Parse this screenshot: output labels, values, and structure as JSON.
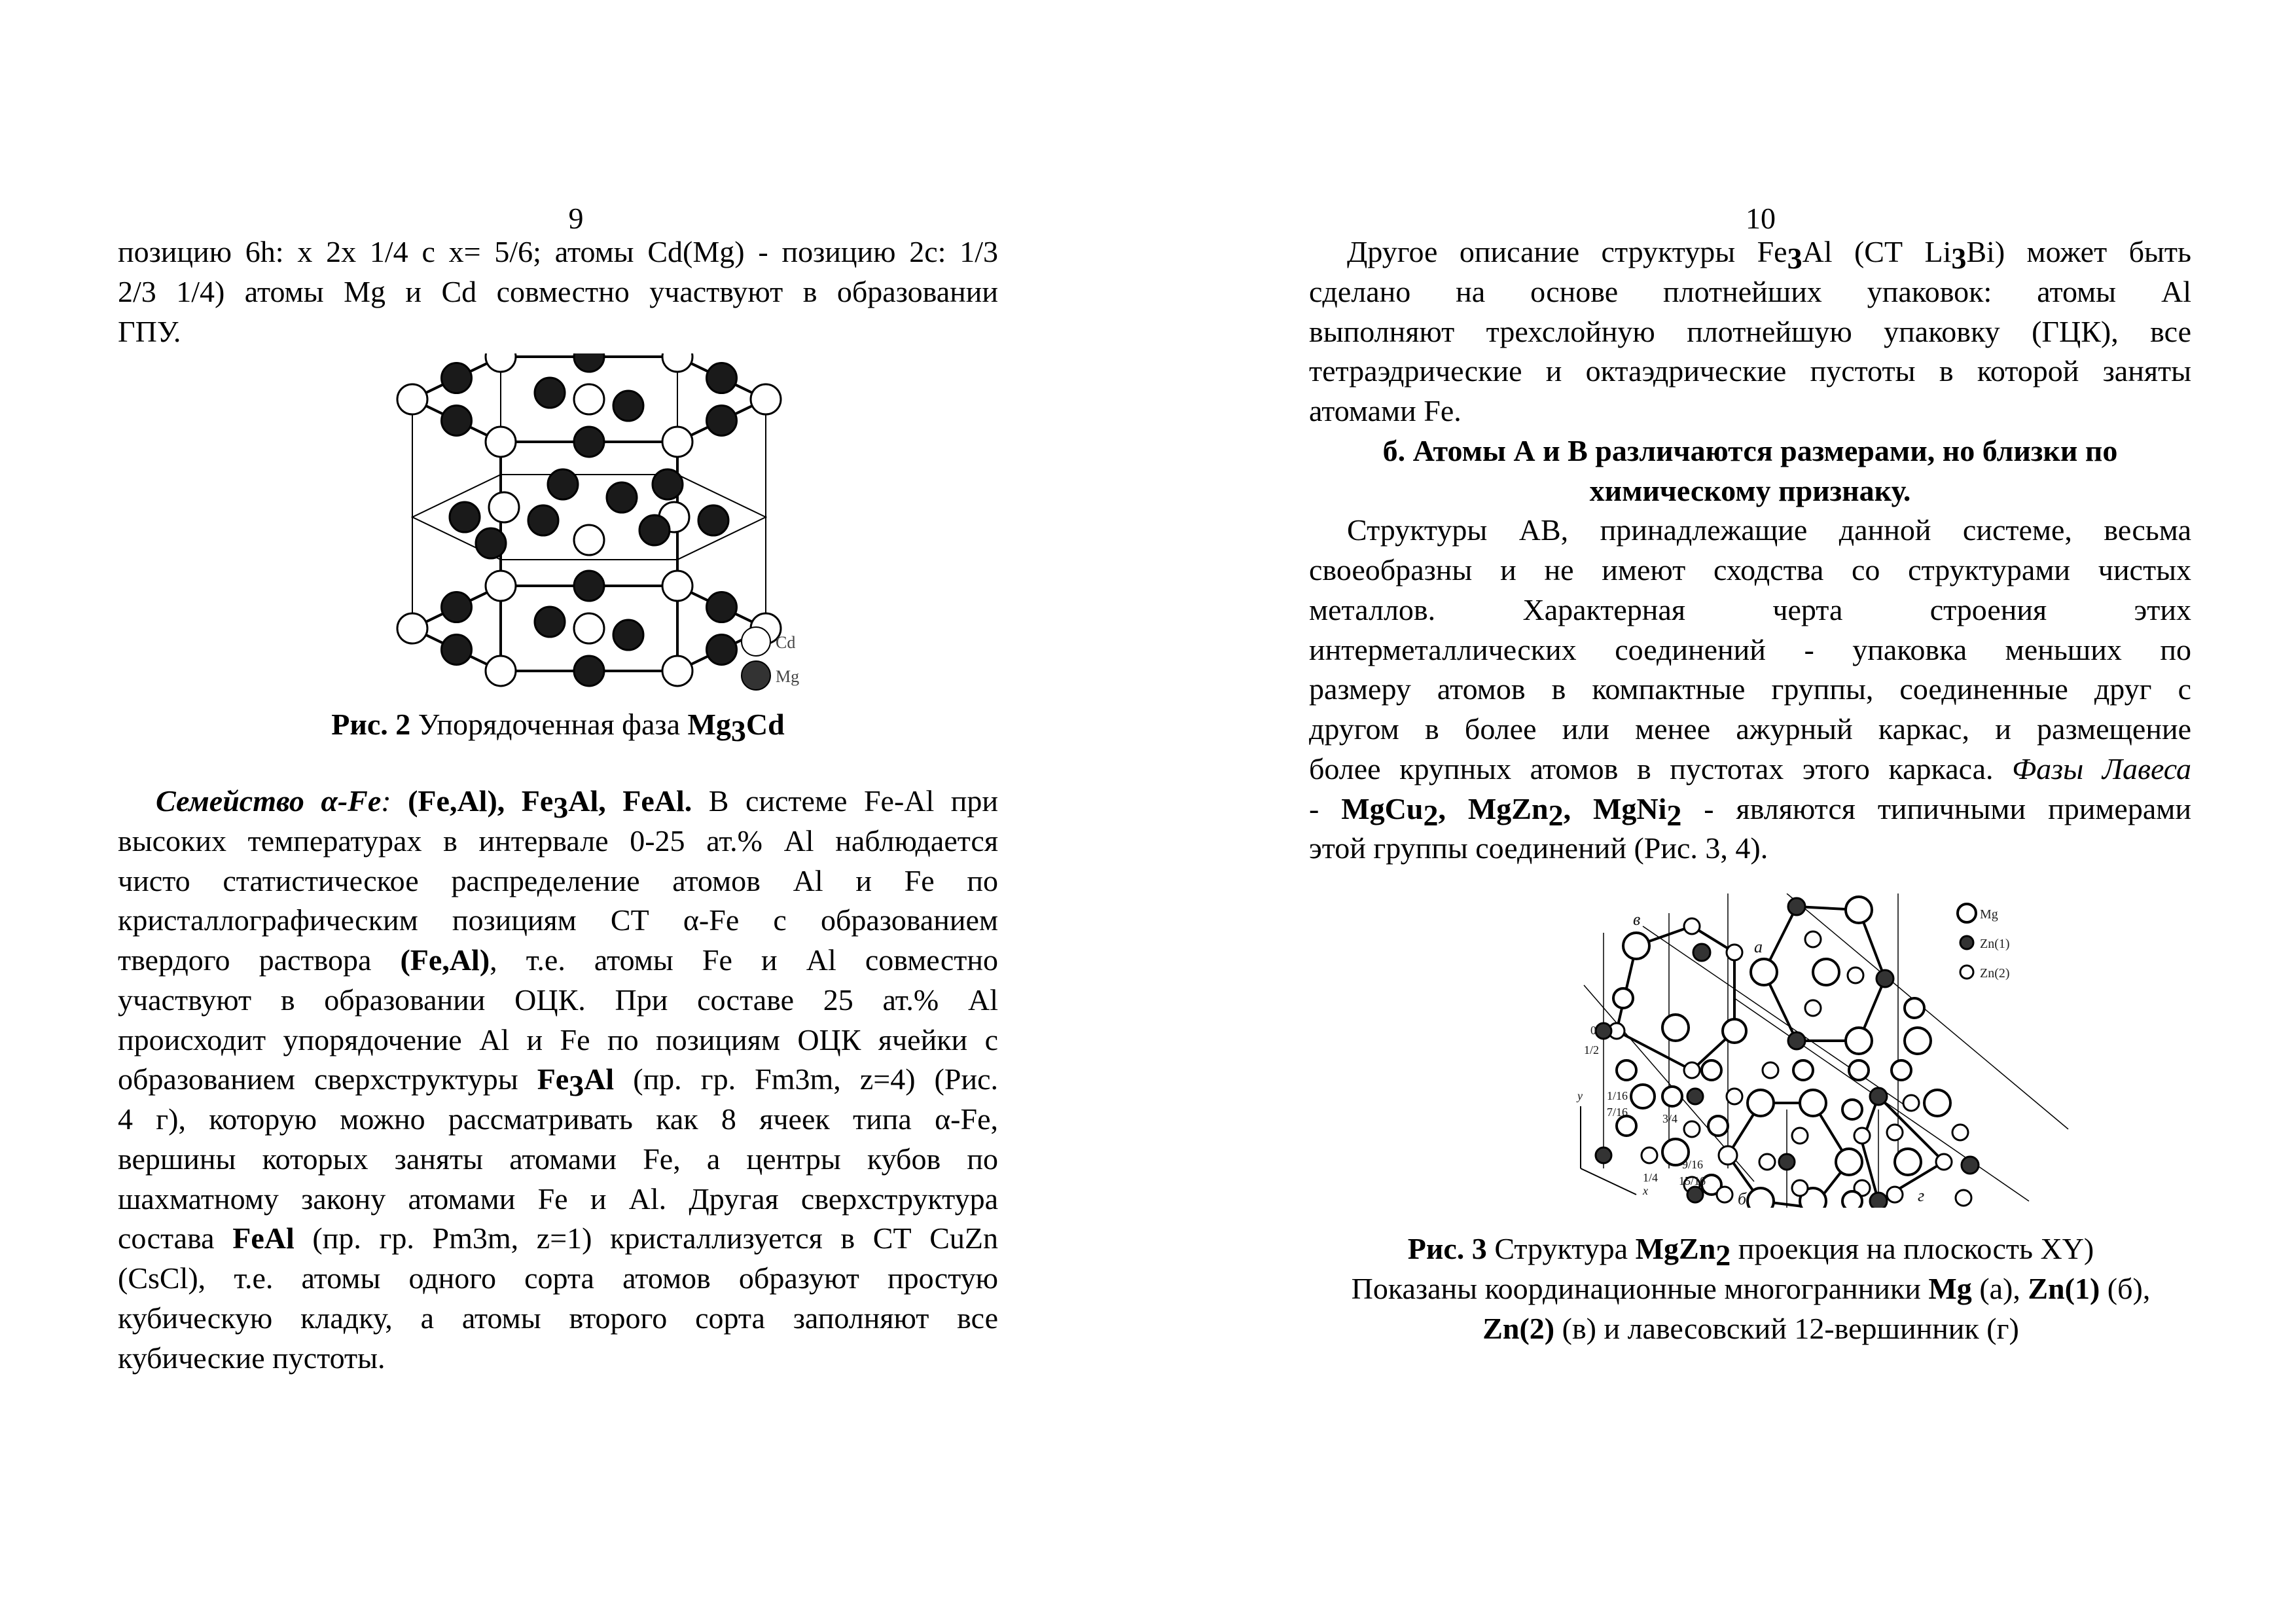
{
  "left": {
    "page_number": "9",
    "lines_top": [
      {
        "cls": "j",
        "runs": [
          {
            "t": "позицию 6h: x 2x 1/4 c x= 5/6; атомы Cd(Mg) - позицию 2c: 1/3"
          }
        ]
      },
      {
        "cls": "j",
        "runs": [
          {
            "t": "2/3 1/4) атомы Mg и Cd совместно участвуют в образовании"
          }
        ]
      },
      {
        "cls": "",
        "runs": [
          {
            "t": "ГПУ."
          }
        ]
      }
    ],
    "figure": {
      "legend": [
        "Cd",
        "Mg"
      ]
    },
    "caption": [
      {
        "cls": "c",
        "runs": [
          {
            "t": "Рис. 2",
            "s": "b"
          },
          {
            "t": " Упорядоченная фаза "
          },
          {
            "t": "Mg",
            "s": "b"
          },
          {
            "t": "3",
            "s": "sub"
          },
          {
            "t": "Cd",
            "s": "b"
          }
        ]
      }
    ],
    "lines_body": [
      {
        "cls": "j ind",
        "runs": [
          {
            "t": "Семейство α-Fe",
            "s": "b i"
          },
          {
            "t": ": ",
            "s": "i"
          },
          {
            "t": "(Fe,Al), Fe",
            "s": "b"
          },
          {
            "t": "3",
            "s": "sub"
          },
          {
            "t": "Al, FeAl.",
            "s": "b"
          },
          {
            "t": " В системе Fe-Al при"
          }
        ]
      },
      {
        "cls": "j",
        "runs": [
          {
            "t": "высоких температурах в интервале 0-25 ат.% Al наблюдается"
          }
        ]
      },
      {
        "cls": "j",
        "runs": [
          {
            "t": "чисто статистическое распределение атомов Al и Fe по"
          }
        ]
      },
      {
        "cls": "j",
        "runs": [
          {
            "t": "кристаллографическим позициям СТ α-Fe с образованием"
          }
        ]
      },
      {
        "cls": "j",
        "runs": [
          {
            "t": "твердого раствора "
          },
          {
            "t": "(Fe,Al)",
            "s": "b"
          },
          {
            "t": ", т.е. атомы  Fe и Al совместно"
          }
        ]
      },
      {
        "cls": "j",
        "runs": [
          {
            "t": "участвуют в образовании ОЦК. При составе 25 ат.% Al"
          }
        ]
      },
      {
        "cls": "j",
        "runs": [
          {
            "t": "происходит упорядочение Al и Fe по позициям ОЦК ячейки с"
          }
        ]
      },
      {
        "cls": "j",
        "runs": [
          {
            "t": "образованием сверхструктуры "
          },
          {
            "t": "Fe",
            "s": "b"
          },
          {
            "t": "3",
            "s": "sub"
          },
          {
            "t": "Al",
            "s": "b"
          },
          {
            "t": " (пр. гр. Fm3m, z=4) (Рис."
          }
        ]
      },
      {
        "cls": "j",
        "runs": [
          {
            "t": "4 г), которую можно рассматривать как 8 ячеек типа α-Fe,"
          }
        ]
      },
      {
        "cls": "j",
        "runs": [
          {
            "t": "вершины которых заняты атомами Fe, а центры кубов по"
          }
        ]
      },
      {
        "cls": "j",
        "runs": [
          {
            "t": "шахматному закону атомами Fe и Al. Другая сверхструктура"
          }
        ]
      },
      {
        "cls": "j",
        "runs": [
          {
            "t": "состава "
          },
          {
            "t": "FeAl",
            "s": "b"
          },
          {
            "t": " (пр. гр. Pm3m, z=1) кристаллизуется в СТ CuZn"
          }
        ]
      },
      {
        "cls": "j",
        "runs": [
          {
            "t": "(CsCl), т.е. атомы одного сорта атомов образуют простую"
          }
        ]
      },
      {
        "cls": "j",
        "runs": [
          {
            "t": "кубическую кладку, а атомы второго сорта заполняют все"
          }
        ]
      },
      {
        "cls": "",
        "runs": [
          {
            "t": "кубические пустоты."
          }
        ]
      }
    ]
  },
  "right": {
    "page_number": "10",
    "lines_top": [
      {
        "cls": "j ind",
        "runs": [
          {
            "t": "Другое описание структуры Fe"
          },
          {
            "t": "3",
            "s": "sub"
          },
          {
            "t": "Al (СТ Li"
          },
          {
            "t": "3",
            "s": "sub"
          },
          {
            "t": "Bi) может быть"
          }
        ]
      },
      {
        "cls": "j",
        "runs": [
          {
            "t": "сделано на основе плотнейших упаковок: атомы Al"
          }
        ]
      },
      {
        "cls": "j",
        "runs": [
          {
            "t": "выполняют трехслойную плотнейшую упаковку (ГЦК), все"
          }
        ]
      },
      {
        "cls": "j",
        "runs": [
          {
            "t": "тетраэдрические и октаэдрические пустоты в которой заняты"
          }
        ]
      },
      {
        "cls": "",
        "runs": [
          {
            "t": "атомами Fe."
          }
        ]
      },
      {
        "cls": "c",
        "runs": [
          {
            "t": "б. Атомы А и В различаются размерами, но близки по",
            "s": "b"
          }
        ]
      },
      {
        "cls": "c",
        "runs": [
          {
            "t": "химическому признаку.",
            "s": "b"
          }
        ]
      },
      {
        "cls": "j ind",
        "runs": [
          {
            "t": "Структуры АВ, принадлежащие данной системе, весьма"
          }
        ]
      },
      {
        "cls": "j",
        "runs": [
          {
            "t": "своеобразны и не имеют сходства со структурами чистых"
          }
        ]
      },
      {
        "cls": "j",
        "runs": [
          {
            "t": "металлов. Характерная черта строения этих"
          }
        ]
      },
      {
        "cls": "j",
        "runs": [
          {
            "t": "интерметаллических соединений - упаковка меньших по"
          }
        ]
      },
      {
        "cls": "j",
        "runs": [
          {
            "t": "размеру атомов в компактные группы, соединенные друг с"
          }
        ]
      },
      {
        "cls": "j",
        "runs": [
          {
            "t": "другом в более или менее ажурный каркас, и размещение"
          }
        ]
      },
      {
        "cls": "j",
        "runs": [
          {
            "t": "более крупных атомов в пустотах этого каркаса. "
          },
          {
            "t": "Фазы Лавеса",
            "s": "i"
          }
        ]
      },
      {
        "cls": "j",
        "runs": [
          {
            "t": "- "
          },
          {
            "t": "MgCu",
            "s": "b"
          },
          {
            "t": "2",
            "s": "sub"
          },
          {
            "t": ", MgZn",
            "s": "b"
          },
          {
            "t": "2",
            "s": "sub"
          },
          {
            "t": ", MgNi",
            "s": "b"
          },
          {
            "t": "2",
            "s": "sub"
          },
          {
            "t": " - являются типичными примерами"
          }
        ]
      },
      {
        "cls": "",
        "runs": [
          {
            "t": "этой группы соединений (Рис. 3, 4)."
          }
        ]
      }
    ],
    "figure": {
      "legend": [
        "Mg",
        "Zn(1)",
        "Zn(2)"
      ],
      "labels": [
        "а",
        "б",
        "в",
        "г",
        "0",
        "1/2",
        "1/16",
        "7/16",
        "3/4",
        "9/16",
        "15/16",
        "1/4",
        "x",
        "y"
      ]
    },
    "caption": [
      {
        "cls": "c",
        "runs": [
          {
            "t": "Рис. 3",
            "s": "b"
          },
          {
            "t": " Структура "
          },
          {
            "t": "MgZn",
            "s": "b"
          },
          {
            "t": "2",
            "s": "sub"
          },
          {
            "t": " проекция на плоскость XY)"
          }
        ]
      },
      {
        "cls": "c",
        "runs": [
          {
            "t": "Показаны координационные многогранники "
          },
          {
            "t": "Mg",
            "s": "b"
          },
          {
            "t": " (а), "
          },
          {
            "t": "Zn(1)",
            "s": "b"
          },
          {
            "t": " (б),"
          }
        ]
      },
      {
        "cls": "c",
        "runs": [
          {
            "t": "Zn(2)",
            "s": "b"
          },
          {
            "t": " (в) и лавесовский 12-вершинник (г)"
          }
        ]
      }
    ]
  }
}
